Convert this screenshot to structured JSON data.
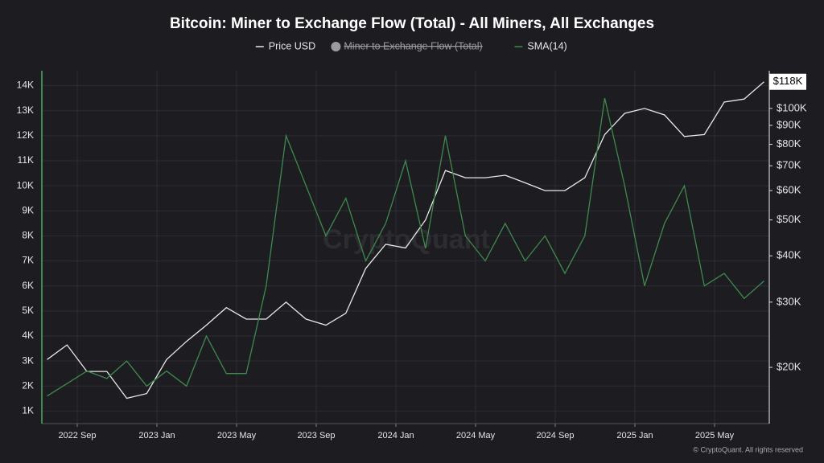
{
  "chart_data": {
    "type": "line",
    "title": "Bitcoin: Miner to Exchange Flow (Total) - All Miners, All Exchanges",
    "watermark": "CryptoQuant",
    "footer": "© CryptoQuant. All rights reserved",
    "x": [
      "2022 Jul",
      "2022 Aug",
      "2022 Sep",
      "2022 Oct",
      "2022 Nov",
      "2022 Dec",
      "2023 Jan",
      "2023 Feb",
      "2023 Mar",
      "2023 Apr",
      "2023 May",
      "2023 Jun",
      "2023 Jul",
      "2023 Aug",
      "2023 Sep",
      "2023 Oct",
      "2023 Nov",
      "2023 Dec",
      "2024 Jan",
      "2024 Feb",
      "2024 Mar",
      "2024 Apr",
      "2024 May",
      "2024 Jun",
      "2024 Jul",
      "2024 Aug",
      "2024 Sep",
      "2024 Oct",
      "2024 Nov",
      "2024 Dec",
      "2025 Jan",
      "2025 Feb",
      "2025 Mar",
      "2025 Apr",
      "2025 May",
      "2025 Jun",
      "2025 Jul"
    ],
    "xticks": [
      "2022 Sep",
      "2023 Jan",
      "2023 May",
      "2023 Sep",
      "2024 Jan",
      "2024 May",
      "2024 Sep",
      "2025 Jan",
      "2025 May"
    ],
    "series": [
      {
        "name": "Price USD",
        "color": "#e8e8e8",
        "axis": "y2",
        "values": [
          21000,
          23000,
          19500,
          19500,
          16500,
          17000,
          21000,
          23500,
          26000,
          29000,
          27000,
          27000,
          30000,
          27000,
          26000,
          28000,
          37000,
          43000,
          42000,
          50000,
          68000,
          65000,
          65000,
          66000,
          63000,
          60000,
          60000,
          65000,
          85000,
          97000,
          100000,
          96000,
          84000,
          85000,
          104000,
          106000,
          118000
        ],
        "value_labels": [
          null,
          null,
          null,
          null,
          null,
          null,
          null,
          null,
          null,
          null,
          null,
          null,
          null,
          null,
          null,
          null,
          null,
          null,
          null,
          null,
          null,
          null,
          null,
          null,
          null,
          null,
          null,
          null,
          null,
          null,
          null,
          null,
          null,
          null,
          null,
          null,
          "$118K"
        ]
      },
      {
        "name": "Miner to Exchange Flow (Total)",
        "color": "#9a9aa0",
        "hidden": true
      },
      {
        "name": "SMA(14)",
        "color": "#3f8a4e",
        "values": [
          1600,
          2100,
          2600,
          2300,
          3000,
          2000,
          2600,
          2000,
          4000,
          2500,
          2500,
          6000,
          12000,
          10000,
          8000,
          9500,
          7000,
          8500,
          11000,
          7500,
          12000,
          8000,
          7000,
          8500,
          7000,
          8000,
          6500,
          8000,
          13500,
          10000,
          6000,
          8500,
          10000,
          6000,
          6500,
          5500,
          6200
        ]
      }
    ],
    "ylim": [
      500,
      14500
    ],
    "yticks": [
      {
        "value": 1000,
        "label": "1K"
      },
      {
        "value": 2000,
        "label": "2K"
      },
      {
        "value": 3000,
        "label": "3K"
      },
      {
        "value": 4000,
        "label": "4K"
      },
      {
        "value": 5000,
        "label": "5K"
      },
      {
        "value": 6000,
        "label": "6K"
      },
      {
        "value": 7000,
        "label": "7K"
      },
      {
        "value": 8000,
        "label": "8K"
      },
      {
        "value": 9000,
        "label": "9K"
      },
      {
        "value": 10000,
        "label": "10K"
      },
      {
        "value": 11000,
        "label": "11K"
      },
      {
        "value": 12000,
        "label": "12K"
      },
      {
        "value": 13000,
        "label": "13K"
      },
      {
        "value": 14000,
        "label": "14K"
      }
    ],
    "y2lim": [
      14100,
      124500
    ],
    "y2scale": "log",
    "y2ticks": [
      {
        "value": 20000,
        "label": "$20K"
      },
      {
        "value": 30000,
        "label": "$30K"
      },
      {
        "value": 40000,
        "label": "$40K"
      },
      {
        "value": 50000,
        "label": "$50K"
      },
      {
        "value": 60000,
        "label": "$60K"
      },
      {
        "value": 70000,
        "label": "$70K"
      },
      {
        "value": 80000,
        "label": "$80K"
      },
      {
        "value": 90000,
        "label": "$90K"
      },
      {
        "value": 100000,
        "label": "$100K"
      }
    ],
    "grid": true,
    "legend": "top"
  }
}
